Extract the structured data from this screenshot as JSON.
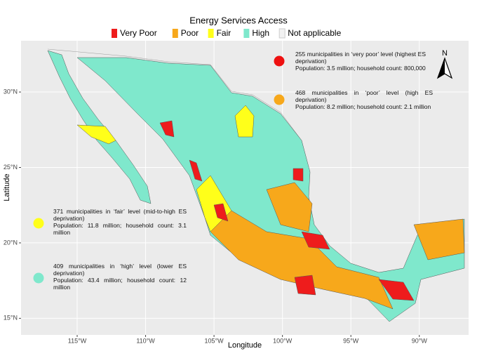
{
  "map": {
    "title": "Energy Services Access",
    "legend": [
      {
        "name": "Very Poor",
        "color": "#ee1c1c"
      },
      {
        "name": "Poor",
        "color": "#f7a81b"
      },
      {
        "name": "Fair",
        "color": "#ffff1a"
      },
      {
        "name": "High",
        "color": "#7fe8cc"
      },
      {
        "name": "Not applicable",
        "color": "#f2f2f2"
      }
    ],
    "x_label": "Longitude",
    "y_label": "Latitude",
    "xlim": [
      -119.1,
      -86.4
    ],
    "ylim": [
      13.9,
      33.4
    ],
    "xticks": [
      {
        "value": -115,
        "label": "115°W"
      },
      {
        "value": -110,
        "label": "110°W"
      },
      {
        "value": -105,
        "label": "105°W"
      },
      {
        "value": -100,
        "label": "100°W"
      },
      {
        "value": -95,
        "label": "95°W"
      },
      {
        "value": -90,
        "label": "90°W"
      }
    ],
    "yticks": [
      {
        "value": 15,
        "label": "15°N"
      },
      {
        "value": 20,
        "label": "20°N"
      },
      {
        "value": 25,
        "label": "25°N"
      },
      {
        "value": 30,
        "label": "30°N"
      }
    ],
    "north_arrow": "N",
    "annotations": [
      {
        "color": "#ee1010",
        "heading": "255 municipalities in ‘very poor’ level (highest ES deprivation)",
        "detail": "Population: 3.5 million; household count: 800,000"
      },
      {
        "color": "#f7a81b",
        "heading": "468 municipalities in ‘poor’ level (high ES deprivation)",
        "detail": "Population: 8.2 million; household count: 2.1 million"
      },
      {
        "color": "#ffff1a",
        "heading": "371 municipalities in ‘fair’ level (mid-to-high ES deprivation)",
        "detail": "Population: 11.8 million; household count: 3.1 million"
      },
      {
        "color": "#7fe8cc",
        "heading": "409 municipalities in ‘high’ level (lower ES deprivation)",
        "detail": "Population: 43.4 million; household count: 12 million"
      }
    ]
  }
}
